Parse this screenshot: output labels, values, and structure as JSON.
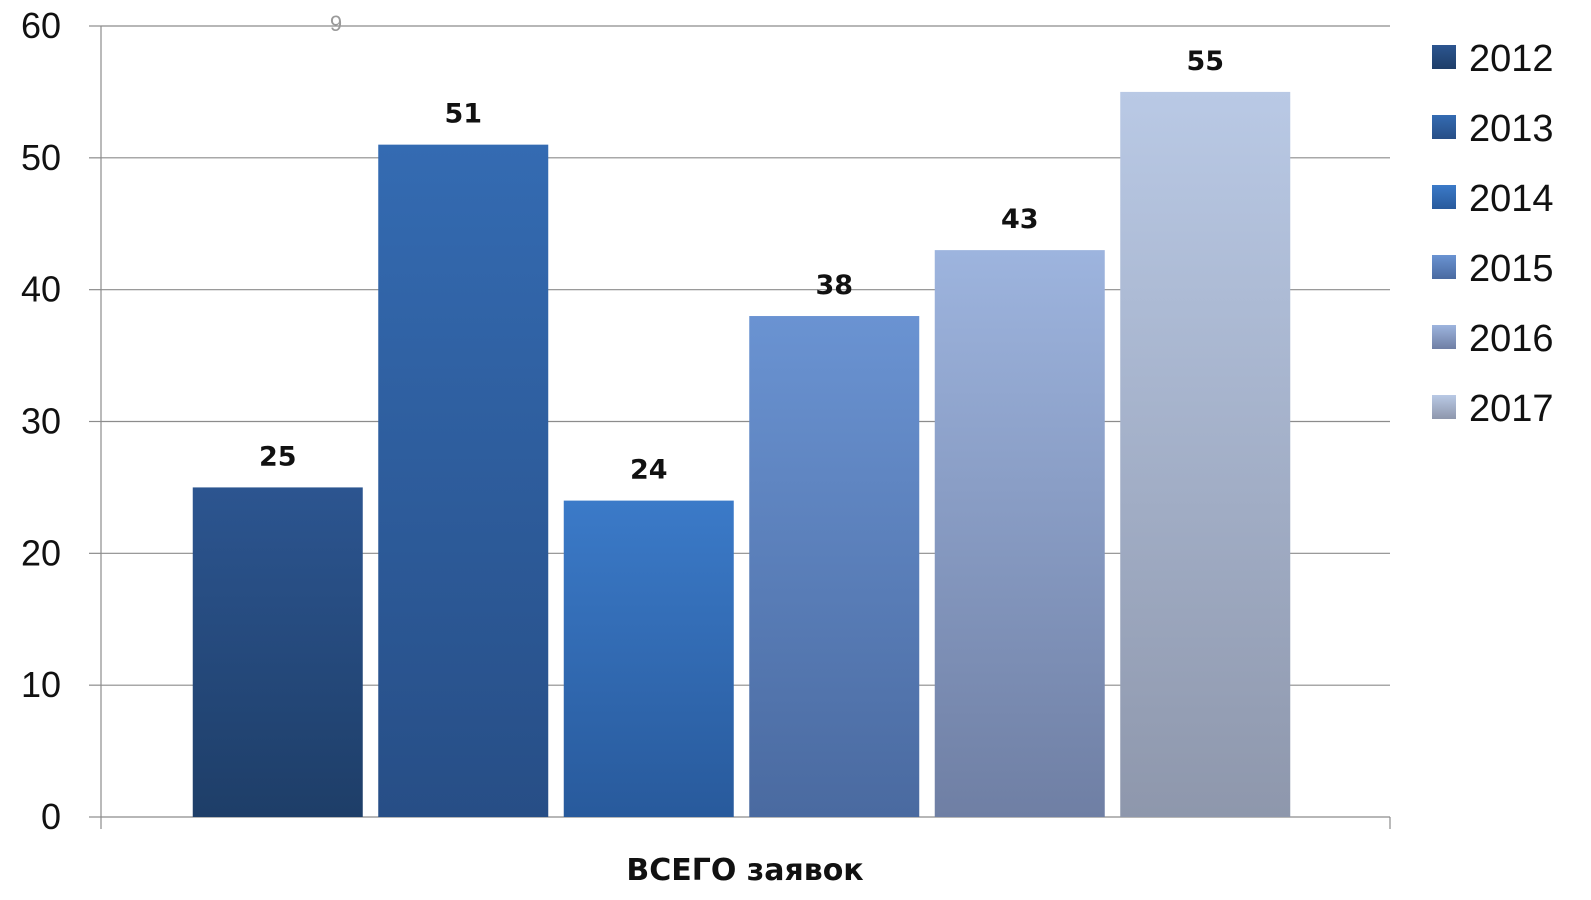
{
  "chart_data": {
    "type": "bar",
    "categories": [
      "ВСЕГО заявок"
    ],
    "series": [
      {
        "name": "2012",
        "values": [
          25
        ],
        "color_top": "#2c5590",
        "color_bottom": "#1e3e68"
      },
      {
        "name": "2013",
        "values": [
          51
        ],
        "color_top": "#346bb2",
        "color_bottom": "#274e86"
      },
      {
        "name": "2014",
        "values": [
          24
        ],
        "color_top": "#3b7ac8",
        "color_bottom": "#285a9c"
      },
      {
        "name": "2015",
        "values": [
          38
        ],
        "color_top": "#6a93d2",
        "color_bottom": "#4a6aa0"
      },
      {
        "name": "2016",
        "values": [
          43
        ],
        "color_top": "#9db4de",
        "color_bottom": "#6f7fa4"
      },
      {
        "name": "2017",
        "values": [
          55
        ],
        "color_top": "#b9c9e5",
        "color_bottom": "#8e97ac"
      }
    ],
    "xlabel": "ВСЕГО заявок",
    "ylabel": "",
    "ylim": [
      0,
      60
    ],
    "yticks": [
      0,
      10,
      20,
      30,
      40,
      50,
      60
    ],
    "grid": true,
    "legend": "right",
    "data_labels": true,
    "note": "9"
  }
}
